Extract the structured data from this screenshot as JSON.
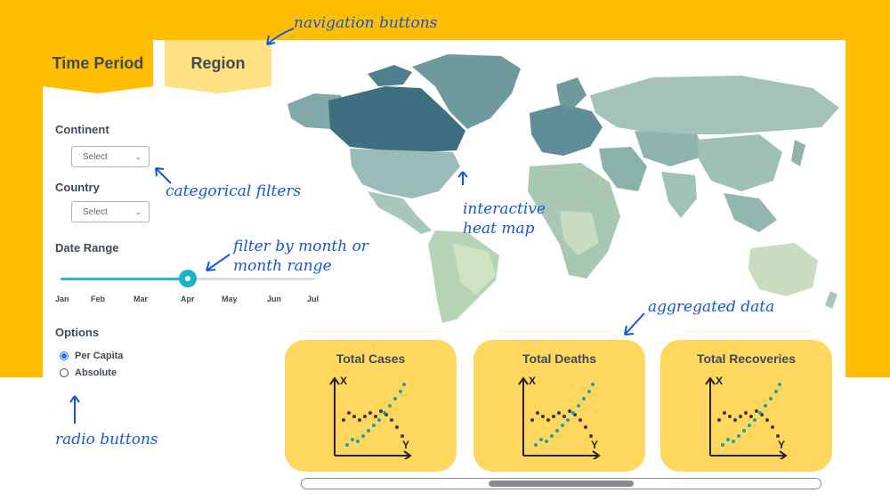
{
  "tabs": [
    {
      "label": "Time Period",
      "active": true
    },
    {
      "label": "Region",
      "active": false
    }
  ],
  "filters": {
    "continent": {
      "label": "Continent",
      "value": "Select"
    },
    "country": {
      "label": "Country",
      "value": "Select"
    }
  },
  "date_range": {
    "label": "Date Range",
    "months": [
      "Jan",
      "Feb",
      "Mar",
      "Apr",
      "May",
      "Jun",
      "Jul"
    ],
    "selected": "Apr"
  },
  "options": {
    "label": "Options",
    "items": [
      {
        "label": "Per Capita",
        "checked": true
      },
      {
        "label": "Absolute",
        "checked": false
      }
    ]
  },
  "cards": [
    {
      "title": "Total Cases",
      "x_axis": "Y",
      "y_axis": "X"
    },
    {
      "title": "Total Deaths",
      "x_axis": "Y",
      "y_axis": "X"
    },
    {
      "title": "Total Recoveries",
      "x_axis": "Y",
      "y_axis": "X"
    }
  ],
  "annotations": {
    "navigation": "navigation buttons",
    "filters": "categorical filters",
    "date": "filter by month or month range",
    "map": "interactive heat map",
    "aggregated": "aggregated data",
    "radio": "radio buttons"
  },
  "colors": {
    "accent": "#ffbf00",
    "tab_inactive": "#ffe082",
    "card": "#ffd75e",
    "slider": "#1fb0c8",
    "annotation": "#1456d9",
    "map_dark": "#3e6f80",
    "map_mid": "#7fa8a8",
    "map_light": "#c7dcc0"
  },
  "scroll_fraction": 0.36
}
